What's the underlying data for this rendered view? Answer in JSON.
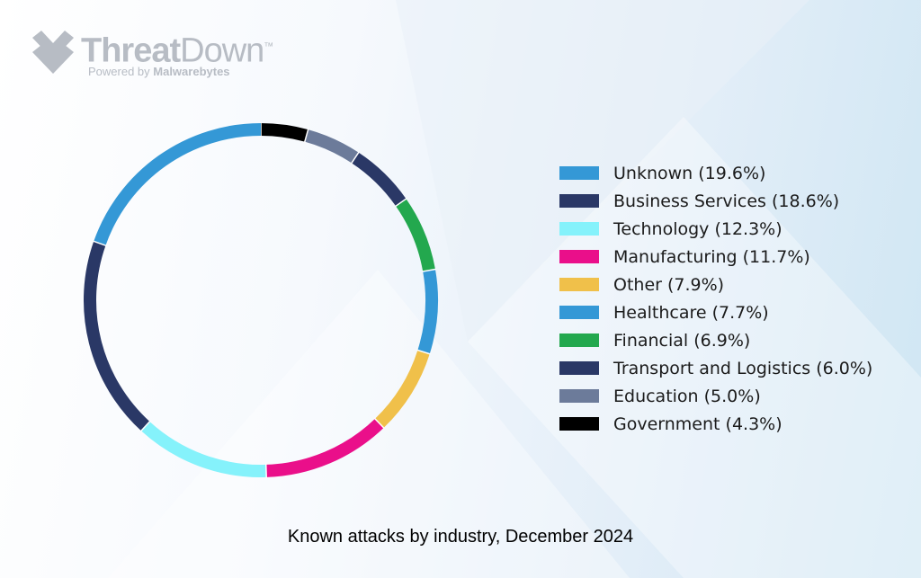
{
  "brand": {
    "name_part1": "Threat",
    "name_part2": "Down",
    "trademark": "™",
    "tagline_prefix": "Powered by ",
    "tagline_brand": "Malwarebytes"
  },
  "chart_data": {
    "type": "pie",
    "variant": "donut",
    "title": "Known attacks by industry, December 2024",
    "legend_position": "right",
    "unit": "%",
    "series": [
      {
        "name": "Unknown",
        "value": 19.6,
        "label": "Unknown (19.6%)",
        "color": "#3498d6"
      },
      {
        "name": "Business Services",
        "value": 18.6,
        "label": "Business Services (18.6%)",
        "color": "#2a3866"
      },
      {
        "name": "Technology",
        "value": 12.3,
        "label": "Technology (12.3%)",
        "color": "#85f2fb"
      },
      {
        "name": "Manufacturing",
        "value": 11.7,
        "label": "Manufacturing (11.7%)",
        "color": "#ea0f8a"
      },
      {
        "name": "Other",
        "value": 7.9,
        "label": "Other (7.9%)",
        "color": "#f0c04a"
      },
      {
        "name": "Healthcare",
        "value": 7.7,
        "label": "Healthcare (7.7%)",
        "color": "#3498d6"
      },
      {
        "name": "Financial",
        "value": 6.9,
        "label": "Financial (6.9%)",
        "color": "#23a84e"
      },
      {
        "name": "Transport and Logistics",
        "value": 6.0,
        "label": "Transport and Logistics (6.0%)",
        "color": "#2a3866"
      },
      {
        "name": "Education",
        "value": 5.0,
        "label": "Education (5.0%)",
        "color": "#6c7b9a"
      },
      {
        "name": "Government",
        "value": 4.3,
        "label": "Government (4.3%)",
        "color": "#000000"
      }
    ]
  }
}
